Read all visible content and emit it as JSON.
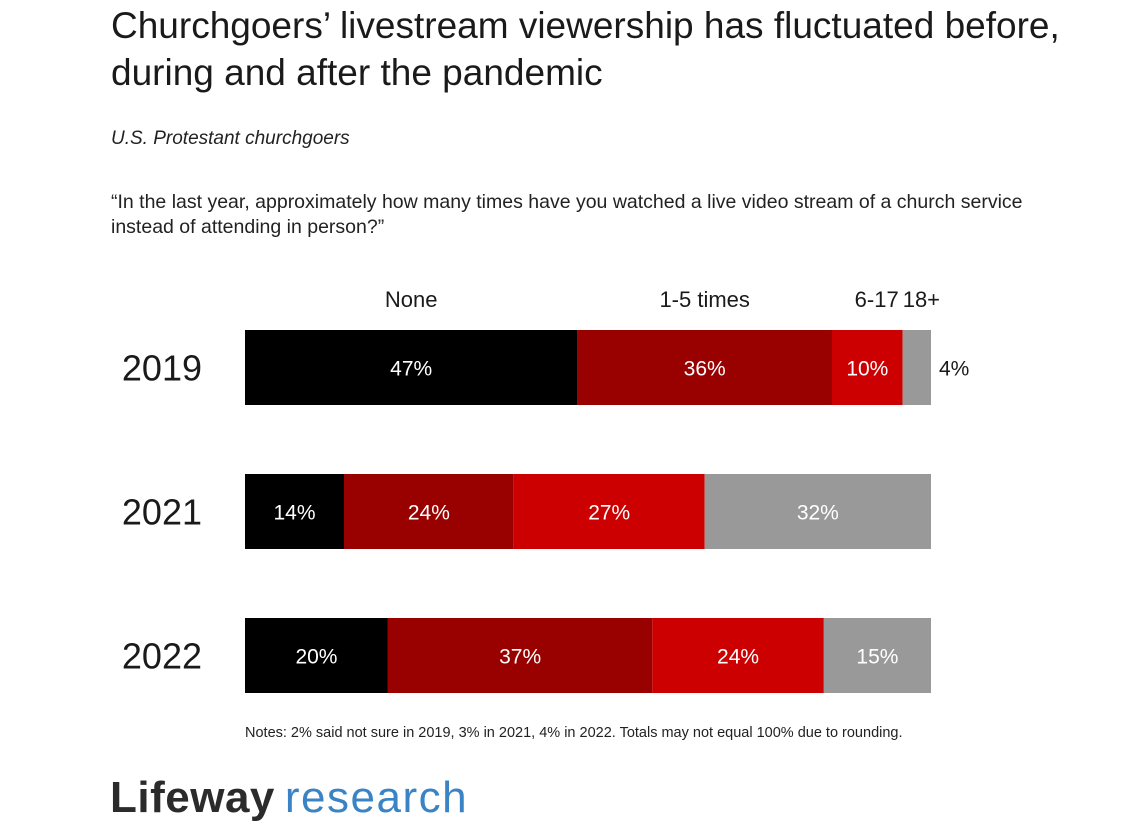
{
  "title": "Churchgoers’ livestream viewership has fluctuated before, during and after the pandemic",
  "subtitle": "U.S. Protestant churchgoers",
  "question": "“In the last year, approximately how many times have you watched a live video stream of a church service instead of attending in person?”",
  "notes": "Notes: 2% said not sure in 2019, 3% in 2021, 4% in 2022. Totals may not equal 100% due to rounding.",
  "logo": {
    "part1": "Lifeway",
    "part2": "research"
  },
  "chart_data": {
    "type": "bar",
    "orientation": "horizontal",
    "stacked": true,
    "categories": [
      "2019",
      "2021",
      "2022"
    ],
    "series": [
      {
        "name": "None",
        "values": [
          47,
          14,
          20
        ],
        "color": "#000000",
        "label_color": "#ffffff"
      },
      {
        "name": "1-5 times",
        "values": [
          36,
          24,
          37
        ],
        "color": "#990000",
        "label_color": "#ffffff"
      },
      {
        "name": "6-17",
        "values": [
          10,
          27,
          24
        ],
        "color": "#cc0000",
        "label_color": "#ffffff"
      },
      {
        "name": "18+",
        "values": [
          4,
          32,
          15
        ],
        "color": "#999999",
        "label_color": "#ffffff"
      }
    ],
    "value_suffix": "%",
    "legend_position": "top, aligned over first bar segments",
    "grid": false
  }
}
